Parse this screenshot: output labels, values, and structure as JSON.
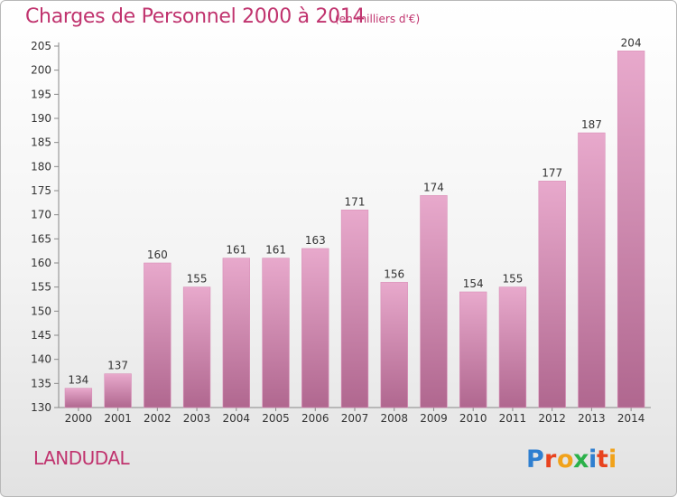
{
  "header": {
    "title": "Charges de Personnel 2000 à 2014",
    "subtitle": "(en milliers d'€)"
  },
  "footer": {
    "commune": "LANDUDAL",
    "logo_text": "Proxiti"
  },
  "colors": {
    "bar_top": "#e8a9cc",
    "bar_bottom": "#b0678f",
    "title": "#c0336e"
  },
  "chart_data": {
    "type": "bar",
    "categories": [
      "2000",
      "2001",
      "2002",
      "2003",
      "2004",
      "2005",
      "2006",
      "2007",
      "2008",
      "2009",
      "2010",
      "2011",
      "2012",
      "2013",
      "2014"
    ],
    "values": [
      134,
      137,
      160,
      155,
      161,
      161,
      163,
      171,
      156,
      174,
      154,
      155,
      177,
      187,
      204
    ],
    "title": "Charges de Personnel 2000 à 2014",
    "ylim": [
      130,
      205
    ],
    "yticks": [
      130,
      135,
      140,
      145,
      150,
      155,
      160,
      165,
      170,
      175,
      180,
      185,
      190,
      195,
      200,
      205
    ],
    "grid": false,
    "data_labels": true
  }
}
